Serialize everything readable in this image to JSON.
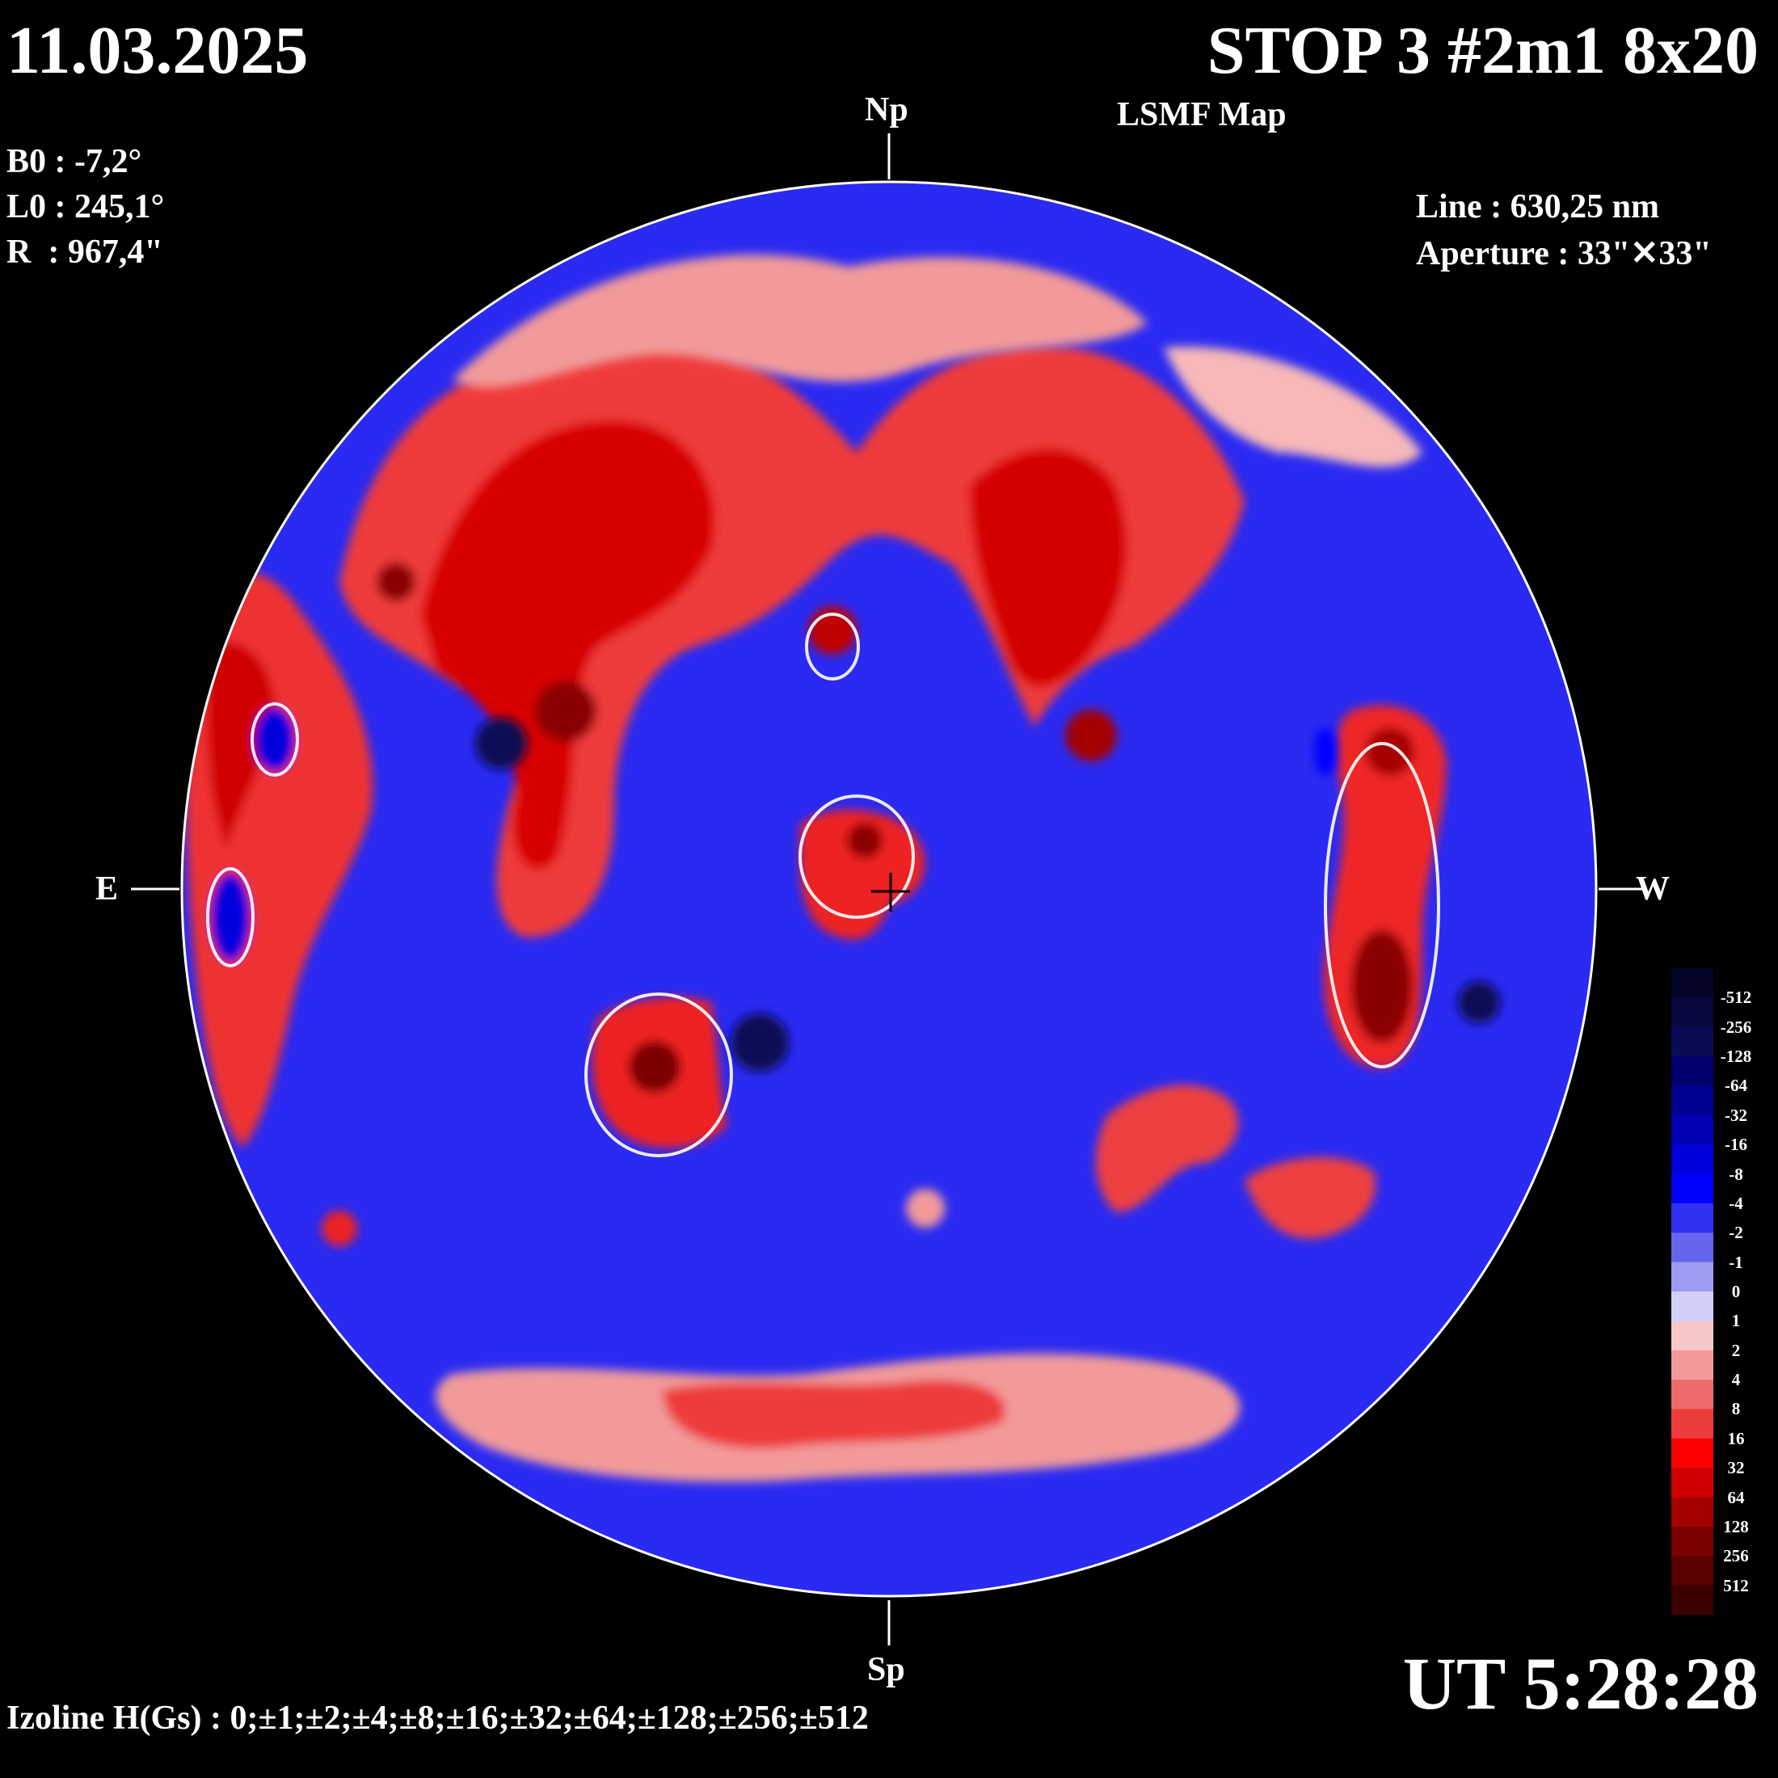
{
  "header": {
    "date": "11.03.2025",
    "title": "STOP 3 #2m1 8x20",
    "subtitle": "LSMF  Map"
  },
  "params": [
    {
      "label": "B0",
      "value": "-7,2°"
    },
    {
      "label": "L0",
      "value": "245,1°"
    },
    {
      "label": "R ",
      "value": "967,4\""
    }
  ],
  "instrument": {
    "line": "Line :  630,25 nm",
    "aperture": "Aperture : 33\"✕33\""
  },
  "directions": {
    "north": "Np",
    "south": "Sp",
    "east": "E",
    "west": "W"
  },
  "time": "UT 5:28:28",
  "izoline": "Izoline H(Gs) : 0;±1;±2;±4;±8;±16;±32;±64;±128;±256;±512",
  "colorbar": {
    "labels": [
      "-512",
      "-256",
      "-128",
      "-64",
      "-32",
      "-16",
      "-8",
      "-4",
      "-2",
      "-1",
      "0",
      "1",
      "2",
      "4",
      "8",
      "16",
      "32",
      "64",
      "128",
      "256",
      "512"
    ],
    "colors": [
      "#05052a",
      "#08083f",
      "#0a0a55",
      "#00006e",
      "#000090",
      "#0000b4",
      "#0000dc",
      "#0000ff",
      "#3030f0",
      "#6565ee",
      "#9b9bf2",
      "#cfcff8",
      "#f7c8c8",
      "#f29a9a",
      "#ee6b6b",
      "#ec3c3c",
      "#ff0000",
      "#d00000",
      "#a50000",
      "#7a0000",
      "#580000",
      "#3a0000"
    ]
  },
  "colors": {
    "neg_strong": "#0000c8",
    "neg_mid": "#3a3af0",
    "neg_weak": "#a8a8f4",
    "pos_weak": "#f5b0b0",
    "pos_mid": "#ee3030",
    "pos_strong": "#8a0000"
  }
}
